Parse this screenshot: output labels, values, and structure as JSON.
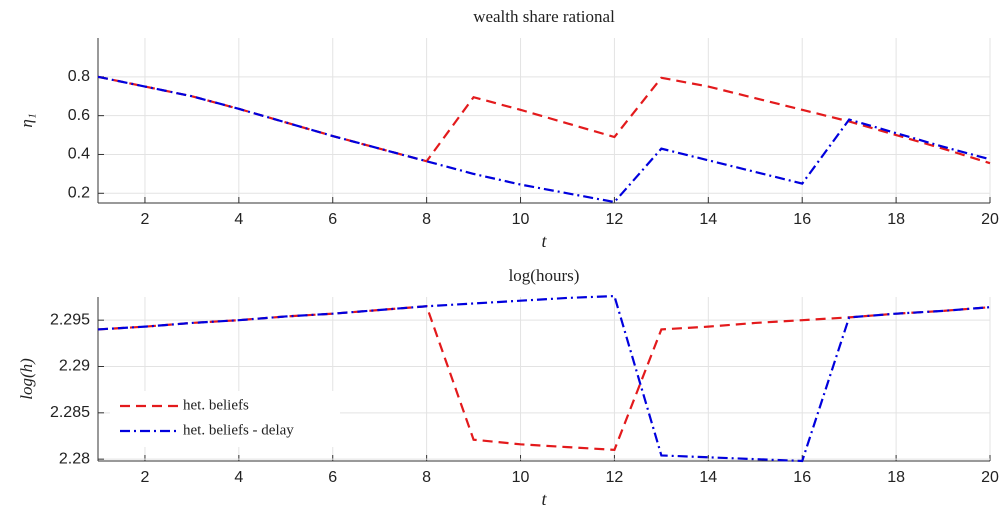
{
  "chart_data": [
    {
      "type": "line",
      "title": "wealth share rational",
      "xlabel": "t",
      "ylabel": "η₁",
      "x": [
        1,
        2,
        3,
        4,
        5,
        6,
        7,
        8,
        9,
        10,
        11,
        12,
        13,
        14,
        15,
        16,
        17,
        18,
        19,
        20
      ],
      "xlim": [
        1,
        20
      ],
      "xticks": [
        2,
        4,
        6,
        8,
        10,
        12,
        14,
        16,
        18,
        20
      ],
      "ylim": [
        0.15,
        1
      ],
      "yticks": [
        0.2,
        0.4,
        0.6,
        0.8
      ],
      "grid": true,
      "series": [
        {
          "name": "het. beliefs",
          "color": "#e31a1c",
          "dash": "dashed",
          "values": [
            0.8,
            0.75,
            0.7,
            0.635,
            0.565,
            0.495,
            0.43,
            0.365,
            0.695,
            0.63,
            0.56,
            0.49,
            0.795,
            0.75,
            0.69,
            0.63,
            0.57,
            0.5,
            0.43,
            0.355
          ]
        },
        {
          "name": "het. beliefs - delay",
          "color": "#0000dd",
          "dash": "dashdot",
          "values": [
            0.8,
            0.75,
            0.7,
            0.635,
            0.565,
            0.495,
            0.43,
            0.365,
            0.3,
            0.245,
            0.2,
            0.155,
            0.43,
            0.37,
            0.31,
            0.25,
            0.58,
            0.51,
            0.44,
            0.375
          ]
        }
      ]
    },
    {
      "type": "line",
      "title": "log(hours)",
      "xlabel": "t",
      "ylabel": "log(h)",
      "x": [
        1,
        2,
        3,
        4,
        5,
        6,
        7,
        8,
        9,
        10,
        11,
        12,
        13,
        14,
        15,
        16,
        17,
        18,
        19,
        20
      ],
      "xlim": [
        1,
        20
      ],
      "xticks": [
        2,
        4,
        6,
        8,
        10,
        12,
        14,
        16,
        18,
        20
      ],
      "ylim": [
        2.2798,
        2.2975
      ],
      "yticks": [
        2.28,
        2.285,
        2.29,
        2.295
      ],
      "grid": true,
      "legend": "southwest",
      "series": [
        {
          "name": "het. beliefs",
          "color": "#e31a1c",
          "dash": "dashed",
          "values": [
            2.294,
            2.2943,
            2.2947,
            2.295,
            2.2954,
            2.2957,
            2.2961,
            2.2965,
            2.2821,
            2.2816,
            2.2813,
            2.281,
            2.294,
            2.2943,
            2.2947,
            2.295,
            2.2953,
            2.2957,
            2.296,
            2.2964
          ]
        },
        {
          "name": "het. beliefs - delay",
          "color": "#0000dd",
          "dash": "dashdot",
          "values": [
            2.294,
            2.2943,
            2.2947,
            2.295,
            2.2954,
            2.2957,
            2.2961,
            2.2965,
            2.2968,
            2.2971,
            2.2974,
            2.2976,
            2.2804,
            2.2802,
            2.28,
            2.2798,
            2.2953,
            2.2957,
            2.296,
            2.2964
          ]
        }
      ]
    }
  ]
}
